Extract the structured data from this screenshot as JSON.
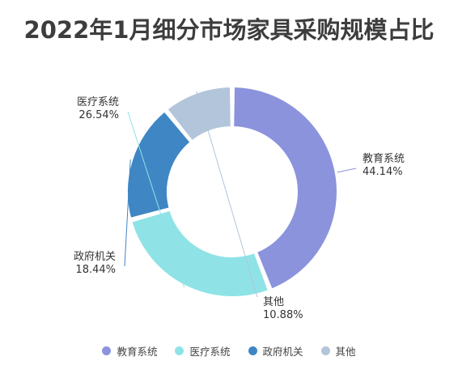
{
  "chart_data": {
    "type": "pie",
    "title": "2022年1月细分市场家具采购规模占比",
    "categories": [
      "教育系统",
      "医疗系统",
      "政府机关",
      "其他"
    ],
    "values": [
      44.14,
      26.54,
      18.44,
      10.88
    ],
    "value_labels": [
      "44.14%",
      "26.54%",
      "18.44%",
      "10.88%"
    ],
    "colors": [
      "#8b93dd",
      "#8fe3e6",
      "#3f86c4",
      "#b3c5da"
    ],
    "donut": true,
    "legend_position": "bottom"
  }
}
